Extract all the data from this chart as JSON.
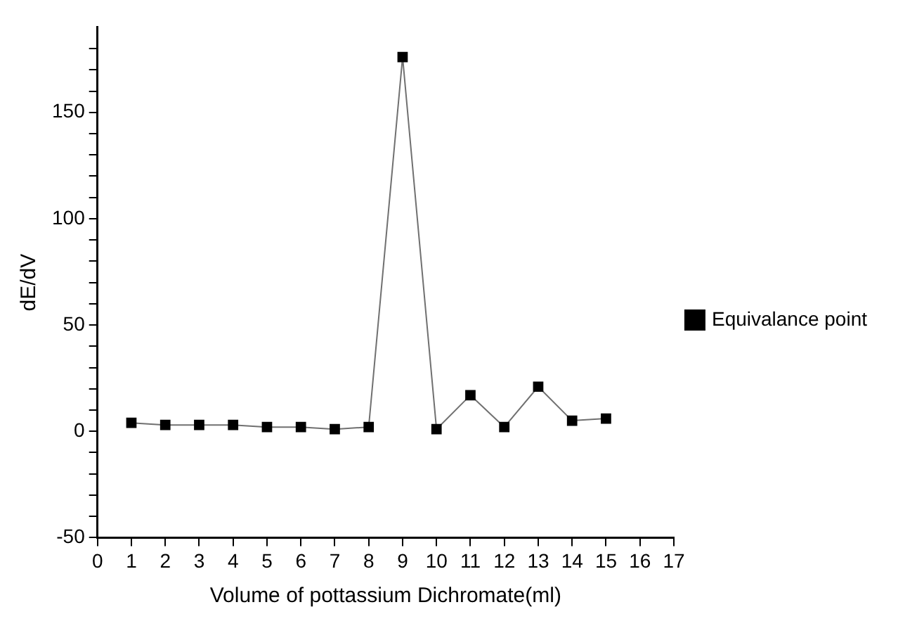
{
  "chart_data": {
    "type": "line",
    "xlabel": "Volume of pottassium Dichromate(ml)",
    "ylabel": "dE/dV",
    "x": [
      1,
      2,
      3,
      4,
      5,
      6,
      7,
      8,
      9,
      10,
      11,
      12,
      13,
      14,
      15
    ],
    "series": [
      {
        "name": "Equivalance point",
        "color": "#000000",
        "values": [
          4,
          3,
          3,
          3,
          2,
          2,
          1,
          2,
          176,
          1,
          17,
          2,
          21,
          5,
          6
        ]
      }
    ],
    "xlim": [
      0,
      17
    ],
    "xticks": [
      0,
      1,
      2,
      3,
      4,
      5,
      6,
      7,
      8,
      9,
      10,
      11,
      12,
      13,
      14,
      15,
      16,
      17
    ],
    "ylim": [
      -50,
      190
    ],
    "yticks": [
      -50,
      {
        "value": -40,
        "label": null
      },
      {
        "value": -30,
        "label": null
      },
      {
        "value": -20,
        "label": null
      },
      {
        "value": -10,
        "label": null
      },
      0,
      {
        "value": 10,
        "label": null
      },
      {
        "value": 20,
        "label": null
      },
      {
        "value": 30,
        "label": null
      },
      {
        "value": 40,
        "label": null
      },
      50,
      {
        "value": 60,
        "label": null
      },
      {
        "value": 70,
        "label": null
      },
      {
        "value": 80,
        "label": null
      },
      {
        "value": 90,
        "label": null
      },
      100,
      {
        "value": 110,
        "label": null
      },
      {
        "value": 120,
        "label": null
      },
      {
        "value": 130,
        "label": null
      },
      {
        "value": 140,
        "label": null
      },
      150,
      {
        "value": 160,
        "label": null
      },
      {
        "value": 170,
        "label": null
      },
      {
        "value": 180,
        "label": null
      }
    ],
    "grid": false,
    "legend": "right",
    "marker": "square",
    "line_style": "solid"
  }
}
